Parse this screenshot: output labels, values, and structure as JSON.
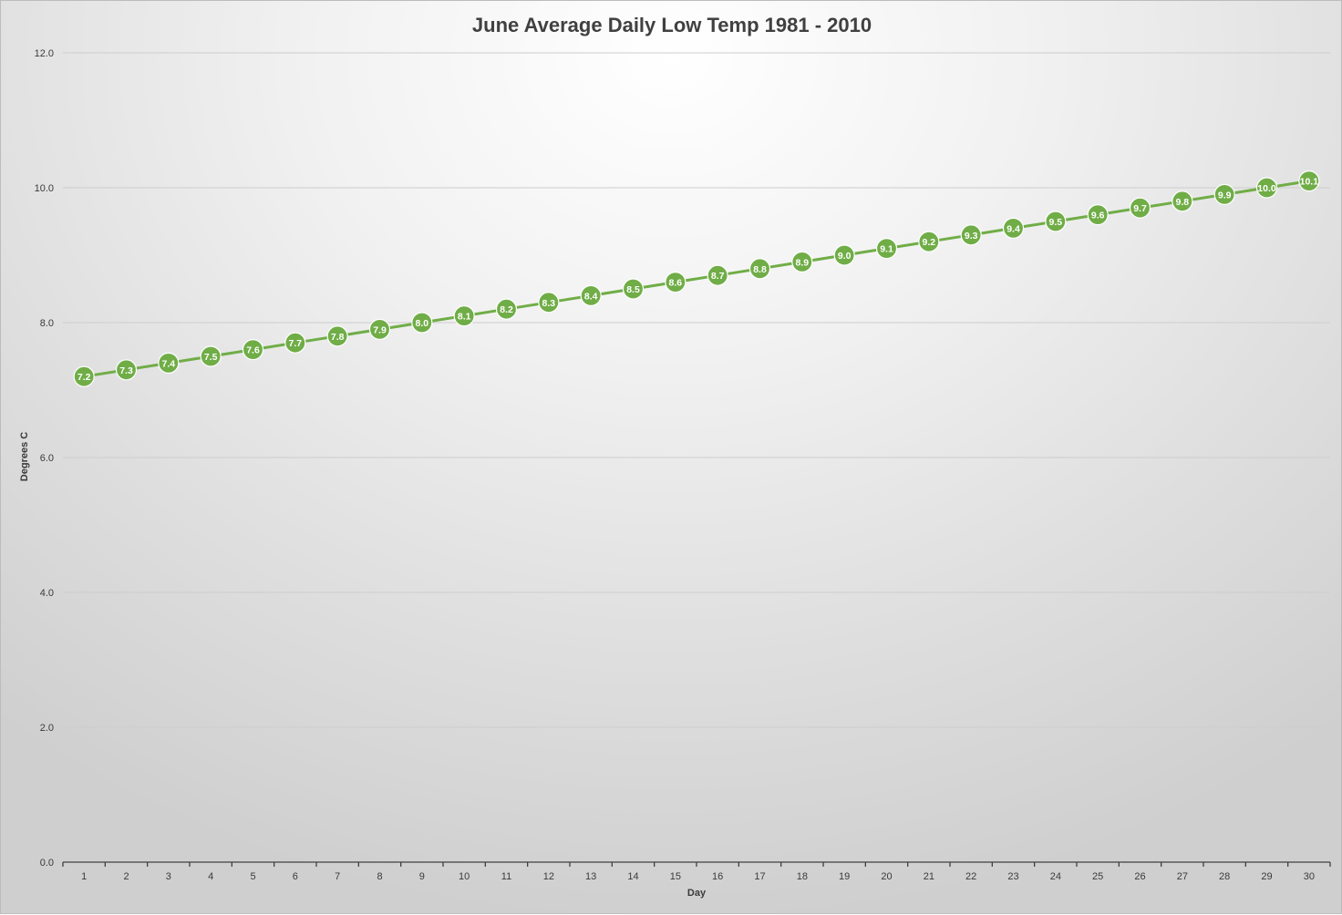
{
  "chart_data": {
    "type": "line",
    "title": "June Average Daily Low Temp 1981 - 2010",
    "xlabel": "Day",
    "ylabel": "Degrees C",
    "ylim": [
      0,
      12
    ],
    "yticks": [
      "0.0",
      "2.0",
      "4.0",
      "6.0",
      "8.0",
      "10.0",
      "12.0"
    ],
    "categories": [
      "1",
      "2",
      "3",
      "4",
      "5",
      "6",
      "7",
      "8",
      "9",
      "10",
      "11",
      "12",
      "13",
      "14",
      "15",
      "16",
      "17",
      "18",
      "19",
      "20",
      "21",
      "22",
      "23",
      "24",
      "25",
      "26",
      "27",
      "28",
      "29",
      "30"
    ],
    "values": [
      7.2,
      7.3,
      7.4,
      7.5,
      7.6,
      7.7,
      7.8,
      7.9,
      8.0,
      8.1,
      8.2,
      8.3,
      8.4,
      8.5,
      8.6,
      8.7,
      8.8,
      8.9,
      9.0,
      9.1,
      9.2,
      9.3,
      9.4,
      9.5,
      9.6,
      9.7,
      9.8,
      9.9,
      10.0,
      10.1
    ],
    "data_labels": [
      "7.2",
      "7.3",
      "7.4",
      "7.5",
      "7.6",
      "7.7",
      "7.8",
      "7.9",
      "8.0",
      "8.1",
      "8.2",
      "8.3",
      "8.4",
      "8.5",
      "8.6",
      "8.7",
      "8.8",
      "8.9",
      "9.0",
      "9.1",
      "9.2",
      "9.3",
      "9.4",
      "9.5",
      "9.6",
      "9.7",
      "9.8",
      "9.9",
      "10.0",
      "10.1"
    ],
    "grid": true,
    "legend": "none",
    "colors": {
      "series": "#70ad47",
      "gridline": "#c8c8c8",
      "axis": "#404040"
    }
  }
}
